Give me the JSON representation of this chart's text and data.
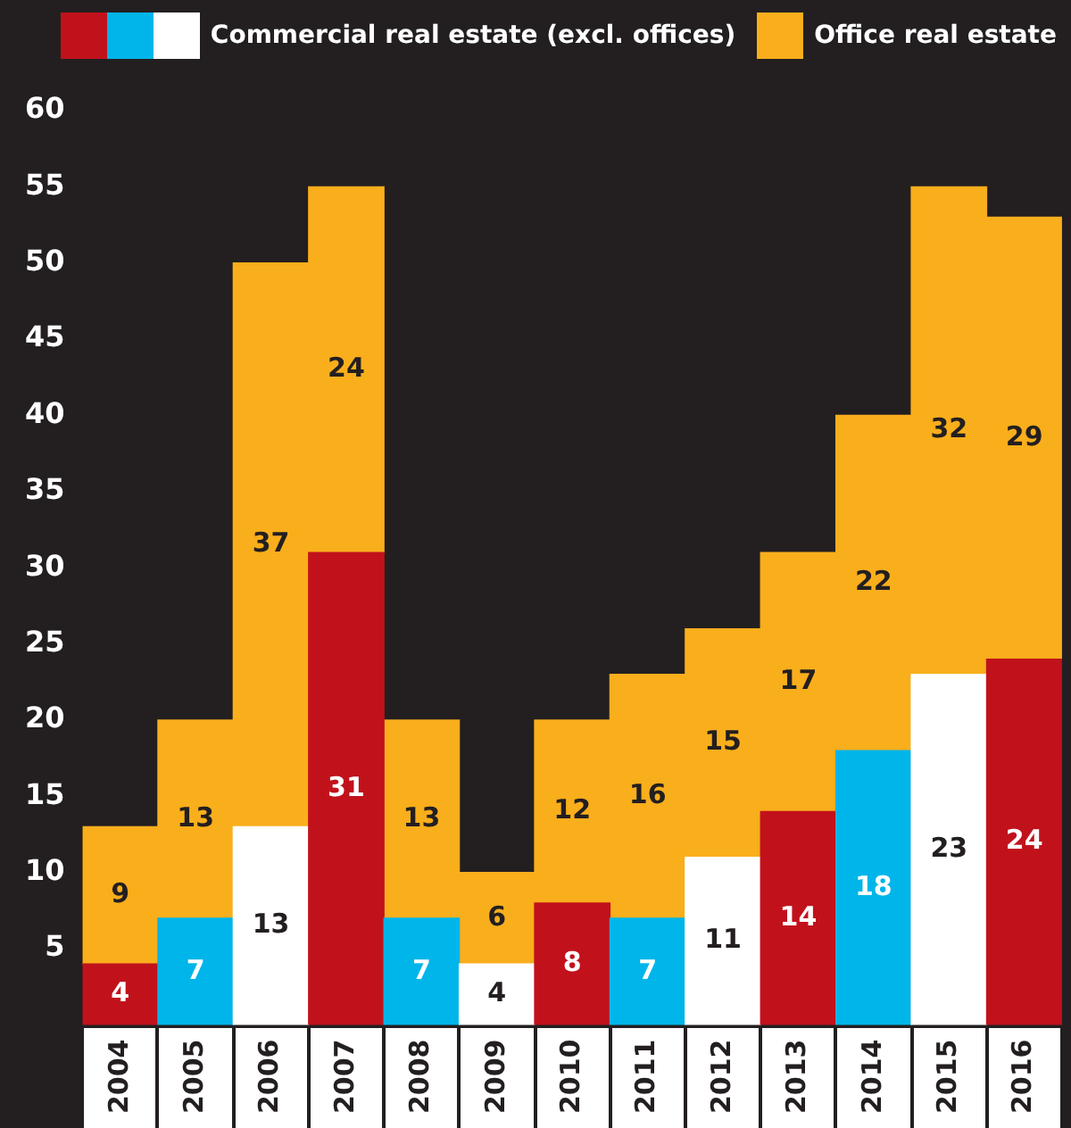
{
  "chart_data": {
    "type": "bar",
    "stacked": true,
    "categories": [
      "2004",
      "2005",
      "2006",
      "2007",
      "2008",
      "2009",
      "2010",
      "2011",
      "2012",
      "2013",
      "2014",
      "2015",
      "2016"
    ],
    "series": [
      {
        "name": "Commercial real estate (excl. offices)",
        "colors": [
          "#c1121c",
          "#00b5e9",
          "#ffffff",
          "#c1121c",
          "#00b5e9",
          "#ffffff",
          "#c1121c",
          "#00b5e9",
          "#ffffff",
          "#c1121c",
          "#00b5e9",
          "#ffffff",
          "#c1121c"
        ],
        "values": [
          4,
          7,
          13,
          31,
          7,
          4,
          8,
          7,
          11,
          14,
          18,
          23,
          24
        ]
      },
      {
        "name": "Office real estate",
        "color": "#f9ae1c",
        "values": [
          9,
          13,
          37,
          24,
          13,
          6,
          12,
          16,
          15,
          17,
          22,
          32,
          29
        ]
      }
    ],
    "ylim": [
      0,
      60
    ],
    "yticks": [
      5,
      10,
      15,
      20,
      25,
      30,
      35,
      40,
      45,
      50,
      55,
      60
    ],
    "grid": false,
    "legend": "top",
    "data_labels": true
  }
}
